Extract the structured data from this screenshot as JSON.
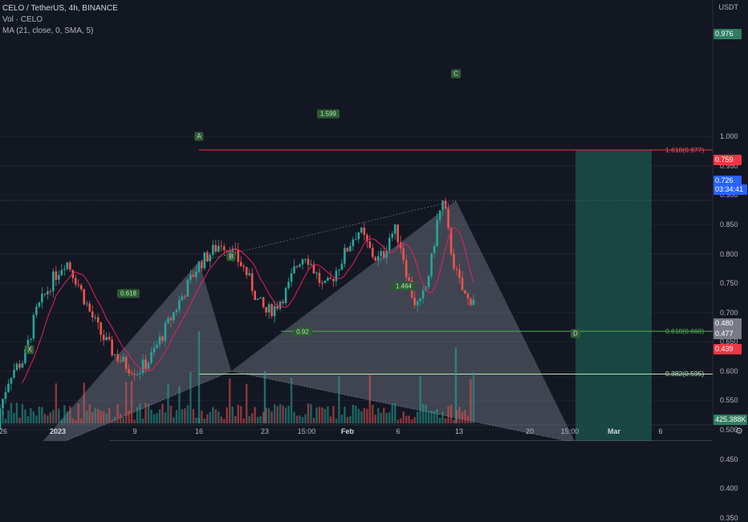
{
  "legend": {
    "title": "CELO / TetherUS, 4h, BINANCE",
    "volume": "Vol · CELO",
    "ma": "MA (21, close, 0, SMA, 5)"
  },
  "axis": {
    "currency": "USDT",
    "y_ticks": [
      "1.000",
      "0.950",
      "0.900",
      "0.850",
      "0.800",
      "0.750",
      "0.700",
      "0.650",
      "0.600",
      "0.550",
      "0.500",
      "0.450",
      "0.400",
      "0.350"
    ],
    "x_ticks": [
      "26",
      "2023",
      "9",
      "16",
      "23",
      "15:00",
      "Feb",
      "6",
      "13",
      "20",
      "15:00",
      "Mar",
      "6"
    ]
  },
  "price_tags": [
    {
      "text": "0.976",
      "bg": "#2e7d5f"
    },
    {
      "text": "0.759",
      "bg": "#f23645"
    },
    {
      "text": "0.726",
      "bg": "#2962ff"
    },
    {
      "text": "03:34:41",
      "bg": "#2962ff"
    },
    {
      "text": "0.480",
      "bg": "#787b86"
    },
    {
      "text": "0.477",
      "bg": "#787b86"
    },
    {
      "text": "0.439",
      "bg": "#f23645"
    },
    {
      "text": "425.388K",
      "bg": "#2e7d5f"
    }
  ],
  "fib_labels": [
    {
      "text": "1.618(0.977)",
      "color": "#f7525f"
    },
    {
      "text": "0.618(0.668)",
      "color": "#4caf50"
    },
    {
      "text": "0.382(0.595)",
      "color": "#b2e8b2"
    }
  ],
  "pattern_points": [
    "X",
    "A",
    "B",
    "C",
    "D"
  ],
  "pattern_ratios": [
    "1.599",
    "0.618",
    "1.464",
    "0.92"
  ],
  "gear_icon": "gear",
  "colors": {
    "up": "#26a69a",
    "down": "#ef5350",
    "ma": "#e91e63",
    "pattern_fill": "rgba(180,185,200,0.28)",
    "target_zone": "#1a4f47",
    "stop_zone": "#6b2330"
  },
  "chart_data": {
    "type": "candlestick",
    "symbol": "CELO / TetherUS",
    "timeframe": "4h",
    "exchange": "BINANCE",
    "ylim": [
      0.315,
      1.005
    ],
    "pattern": {
      "name": "harmonic XABCD",
      "X": 0.455,
      "A": 0.787,
      "B": 0.6,
      "C": 0.891,
      "D": 0.478
    },
    "fib_levels": [
      {
        "ratio": 1.618,
        "price": 0.977
      },
      {
        "ratio": 0.618,
        "price": 0.668
      },
      {
        "ratio": 0.382,
        "price": 0.595
      }
    ],
    "position": {
      "entry": 0.478,
      "target": 0.976,
      "stop": 0.439
    },
    "last_price": 0.726,
    "ma_value": 0.759,
    "volume_last": "425.388K",
    "price_path": [
      [
        0.5,
        0.497
      ],
      [
        0.48,
        0.493
      ],
      [
        0.47,
        0.49
      ],
      [
        0.46,
        0.487
      ],
      [
        0.45,
        0.483
      ],
      [
        0.46,
        0.48
      ],
      [
        0.48,
        0.477
      ],
      [
        0.49,
        0.474
      ],
      [
        0.5,
        0.472
      ],
      [
        0.51,
        0.47
      ],
      [
        0.52,
        0.468
      ],
      [
        0.53,
        0.469
      ],
      [
        0.55,
        0.472
      ],
      [
        0.58,
        0.476
      ],
      [
        0.6,
        0.48
      ],
      [
        0.61,
        0.485
      ],
      [
        0.62,
        0.49
      ],
      [
        0.66,
        0.495
      ],
      [
        0.7,
        0.5
      ],
      [
        0.72,
        0.505
      ],
      [
        0.74,
        0.51
      ],
      [
        0.76,
        0.515
      ],
      [
        0.79,
        0.525
      ],
      [
        0.75,
        0.535
      ],
      [
        0.7,
        0.545
      ],
      [
        0.66,
        0.555
      ],
      [
        0.63,
        0.565
      ],
      [
        0.61,
        0.575
      ],
      [
        0.6,
        0.585
      ],
      [
        0.62,
        0.595
      ],
      [
        0.66,
        0.605
      ],
      [
        0.7,
        0.615
      ],
      [
        0.74,
        0.625
      ],
      [
        0.78,
        0.635
      ],
      [
        0.8,
        0.645
      ],
      [
        0.82,
        0.655
      ],
      [
        0.8,
        0.665
      ],
      [
        0.77,
        0.675
      ],
      [
        0.72,
        0.685
      ],
      [
        0.7,
        0.692
      ],
      [
        0.71,
        0.7
      ],
      [
        0.74,
        0.71
      ],
      [
        0.77,
        0.715
      ],
      [
        0.79,
        0.72
      ],
      [
        0.8,
        0.725
      ],
      [
        0.78,
        0.73
      ],
      [
        0.76,
        0.735
      ],
      [
        0.74,
        0.74
      ],
      [
        0.75,
        0.745
      ],
      [
        0.77,
        0.75
      ],
      [
        0.79,
        0.755
      ],
      [
        0.81,
        0.76
      ],
      [
        0.83,
        0.765
      ],
      [
        0.84,
        0.77
      ],
      [
        0.82,
        0.775
      ],
      [
        0.8,
        0.78
      ],
      [
        0.79,
        0.785
      ],
      [
        0.8,
        0.79
      ],
      [
        0.83,
        0.795
      ],
      [
        0.84,
        0.8
      ],
      [
        0.81,
        0.805
      ],
      [
        0.76,
        0.81
      ],
      [
        0.72,
        0.815
      ],
      [
        0.71,
        0.82
      ],
      [
        0.74,
        0.825
      ],
      [
        0.79,
        0.83
      ],
      [
        0.86,
        0.835
      ],
      [
        0.89,
        0.84
      ],
      [
        0.82,
        0.845
      ],
      [
        0.77,
        0.85
      ],
      [
        0.74,
        0.855
      ],
      [
        0.72,
        0.86
      ],
      [
        0.726,
        0.865
      ]
    ]
  }
}
